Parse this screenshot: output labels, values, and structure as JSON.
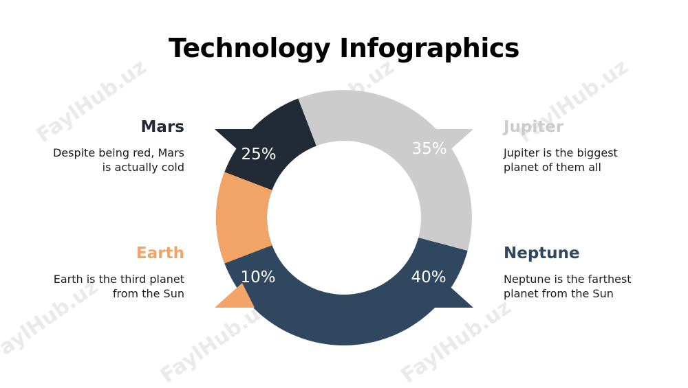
{
  "title": "Technology Infographics",
  "watermark": "FaylHub.uz",
  "chart_data": {
    "type": "pie",
    "variant": "donut",
    "categories": [
      "Mars",
      "Jupiter",
      "Neptune",
      "Earth"
    ],
    "values": [
      25,
      35,
      40,
      10
    ],
    "labels": [
      "25%",
      "35%",
      "40%",
      "10%"
    ],
    "colors": [
      "#222a35",
      "#cccccc",
      "#2f475f",
      "#f2a467"
    ]
  },
  "items": {
    "mars": {
      "heading": "Mars",
      "desc1": "Despite being red, Mars",
      "desc2": "is actually cold",
      "color": "#222a35"
    },
    "jupiter": {
      "heading": "Jupiter",
      "desc1": "Jupiter is the biggest",
      "desc2": "planet of them all",
      "color": "#cccccc"
    },
    "earth": {
      "heading": "Earth",
      "desc1": "Earth is the third planet",
      "desc2": "from the Sun",
      "color": "#f2a467"
    },
    "neptune": {
      "heading": "Neptune",
      "desc1": "Neptune is the farthest",
      "desc2": "planet from the Sun",
      "color": "#2f475f"
    }
  }
}
